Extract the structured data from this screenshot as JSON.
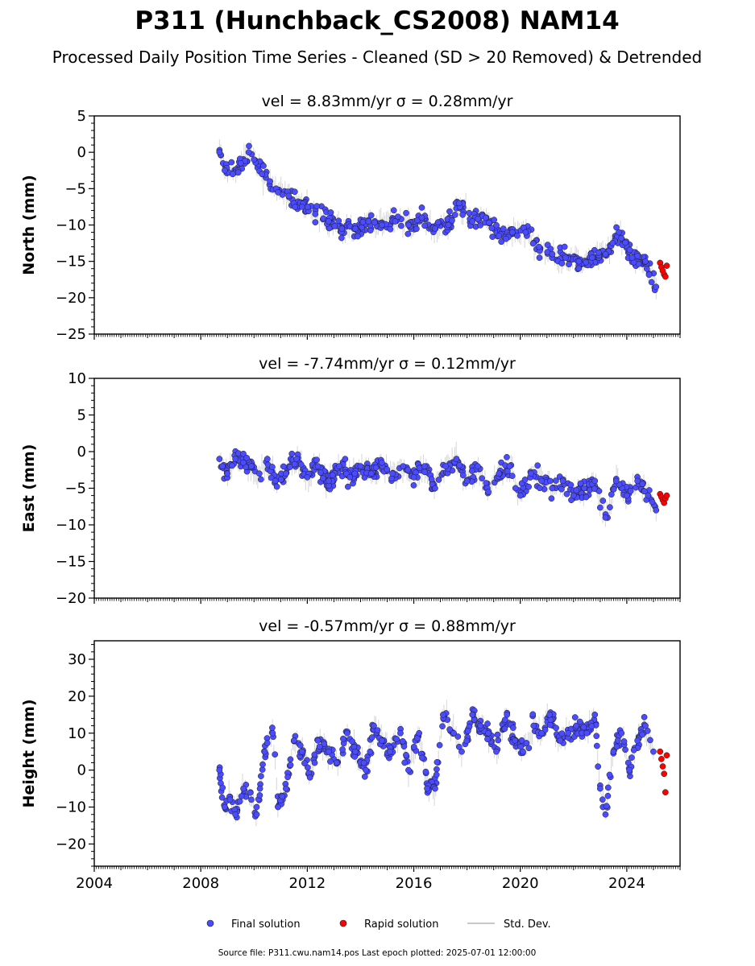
{
  "figure": {
    "title": "P311 (Hunchback_CS2008) NAM14",
    "subtitle": "Processed Daily Position Time Series - Cleaned (SD > 20 Removed) & Detrended",
    "source_note": "Source file: P311.cwu.nam14.pos  Last epoch plotted: 2025-07-01 12:00:00"
  },
  "legend": {
    "final": "Final solution",
    "rapid": "Rapid solution",
    "std": "Std. Dev."
  },
  "colors": {
    "final": "#4b4bff",
    "rapid": "#ff0000",
    "std": "#b4b4b4",
    "edge": "#1a1a1a"
  },
  "chart_data": [
    {
      "type": "scatter",
      "title": "vel = 8.83mm/yr   σ = 0.28mm/yr",
      "ylabel": "North (mm)",
      "xlim": [
        2004.0,
        2026.0
      ],
      "ylim": [
        -25,
        5
      ],
      "yticks": [
        "5",
        "0",
        "−5",
        "−10",
        "−15",
        "−20",
        "−25"
      ],
      "ytick_values": [
        5,
        0,
        -5,
        -10,
        -15,
        -20,
        -25
      ],
      "series": [
        {
          "name": "Final solution",
          "x": [
            2008.7,
            2008.9,
            2009.2,
            2009.5,
            2009.8,
            2010.0,
            2010.3,
            2010.6,
            2010.9,
            2011.3,
            2011.8,
            2012.3,
            2012.8,
            2013.3,
            2013.8,
            2014.3,
            2014.8,
            2015.3,
            2015.8,
            2016.3,
            2016.8,
            2017.3,
            2017.7,
            2018.2,
            2018.7,
            2019.2,
            2019.7,
            2020.2,
            2020.7,
            2021.2,
            2021.7,
            2022.2,
            2022.7,
            2023.2,
            2023.7,
            2024.2,
            2024.7,
            2025.1
          ],
          "y": [
            0,
            -2.5,
            -3,
            -1.5,
            0,
            -1,
            -3,
            -4,
            -5.5,
            -6,
            -7.5,
            -8.5,
            -9.5,
            -10.5,
            -10.5,
            -9.5,
            -10,
            -9.5,
            -10,
            -9,
            -10.5,
            -10,
            -7,
            -9.5,
            -9,
            -11.5,
            -11,
            -11,
            -13,
            -14,
            -14.5,
            -15,
            -14.5,
            -14,
            -11,
            -14.5,
            -15,
            -18.5
          ]
        },
        {
          "name": "Rapid solution",
          "x": [
            2025.25,
            2025.3,
            2025.35,
            2025.4,
            2025.45,
            2025.5
          ],
          "y": [
            -15.2,
            -15.8,
            -16.3,
            -16.8,
            -17.1,
            -15.6
          ]
        }
      ]
    },
    {
      "type": "scatter",
      "title": "vel = -7.74mm/yr   σ = 0.12mm/yr",
      "ylabel": "East (mm)",
      "xlim": [
        2004.0,
        2026.0
      ],
      "ylim": [
        -20,
        10
      ],
      "yticks": [
        "10",
        "5",
        "0",
        "−5",
        "−10",
        "−15",
        "−20"
      ],
      "ytick_values": [
        10,
        5,
        0,
        -5,
        -10,
        -15,
        -20
      ],
      "series": [
        {
          "name": "Final solution",
          "x": [
            2008.7,
            2009.0,
            2009.3,
            2009.6,
            2009.9,
            2010.2,
            2010.5,
            2010.8,
            2011.2,
            2011.6,
            2012.0,
            2012.4,
            2012.8,
            2013.2,
            2013.6,
            2014.0,
            2014.4,
            2014.8,
            2015.2,
            2015.6,
            2016.0,
            2016.4,
            2016.8,
            2017.2,
            2017.6,
            2018.0,
            2018.4,
            2018.8,
            2019.2,
            2019.6,
            2020.0,
            2020.4,
            2020.8,
            2021.2,
            2021.6,
            2022.0,
            2022.4,
            2022.8,
            2023.2,
            2023.6,
            2024.0,
            2024.4,
            2024.8,
            2025.1
          ],
          "y": [
            -1,
            -3,
            -1,
            -1.5,
            -2,
            -3,
            -1,
            -4,
            -3,
            -1,
            -3.5,
            -2,
            -4,
            -2,
            -3.5,
            -2,
            -3,
            -1.5,
            -3,
            -2,
            -3.5,
            -2,
            -5,
            -2,
            -1,
            -4,
            -2,
            -5.5,
            -3,
            -2,
            -6,
            -3,
            -4,
            -5,
            -4,
            -6,
            -5,
            -4,
            -9,
            -4,
            -6,
            -4,
            -6,
            -8
          ]
        },
        {
          "name": "Rapid solution",
          "x": [
            2025.25,
            2025.3,
            2025.35,
            2025.4,
            2025.45,
            2025.5
          ],
          "y": [
            -5.8,
            -6.2,
            -6.6,
            -7.0,
            -6.4,
            -6.0
          ]
        }
      ]
    },
    {
      "type": "scatter",
      "title": "vel = -0.57mm/yr   σ = 0.88mm/yr",
      "ylabel": "Height (mm)",
      "xlim": [
        2004.0,
        2026.0
      ],
      "ylim": [
        -26,
        35
      ],
      "yticks": [
        "30",
        "20",
        "10",
        "0",
        "−10",
        "−20"
      ],
      "ytick_values": [
        30,
        20,
        10,
        0,
        -10,
        -20
      ],
      "xticks": [
        "2004",
        "2008",
        "2012",
        "2016",
        "2020",
        "2024"
      ],
      "xtick_values": [
        2004,
        2008,
        2012,
        2016,
        2020,
        2024
      ],
      "series": [
        {
          "name": "Final solution",
          "x": [
            2008.7,
            2008.9,
            2009.1,
            2009.3,
            2009.6,
            2009.9,
            2010.1,
            2010.4,
            2010.7,
            2010.9,
            2011.2,
            2011.5,
            2011.8,
            2012.1,
            2012.4,
            2012.8,
            2013.1,
            2013.5,
            2013.8,
            2014.2,
            2014.5,
            2014.8,
            2015.1,
            2015.5,
            2015.8,
            2016.2,
            2016.5,
            2016.8,
            2017.1,
            2017.5,
            2017.8,
            2018.2,
            2018.5,
            2018.8,
            2019.1,
            2019.5,
            2019.8,
            2020.1,
            2020.5,
            2020.8,
            2021.1,
            2021.5,
            2021.8,
            2022.1,
            2022.5,
            2022.8,
            2023.0,
            2023.2,
            2023.5,
            2023.8,
            2024.1,
            2024.4,
            2024.7,
            2025.0
          ],
          "y": [
            0,
            -10,
            -8,
            -12,
            -5,
            -8,
            -12,
            5,
            10,
            -10,
            -5,
            8,
            5,
            -2,
            8,
            5,
            2,
            10,
            5,
            0,
            12,
            8,
            5,
            10,
            0,
            10,
            -5,
            -5,
            15,
            10,
            5,
            15,
            12,
            10,
            5,
            15,
            8,
            5,
            12,
            10,
            15,
            8,
            10,
            12,
            10,
            15,
            -5,
            -12,
            5,
            10,
            0,
            8,
            12,
            5
          ]
        },
        {
          "name": "Rapid solution",
          "x": [
            2025.25,
            2025.3,
            2025.35,
            2025.4,
            2025.45,
            2025.5
          ],
          "y": [
            5,
            3,
            1,
            -1,
            -6,
            4
          ]
        }
      ]
    }
  ]
}
